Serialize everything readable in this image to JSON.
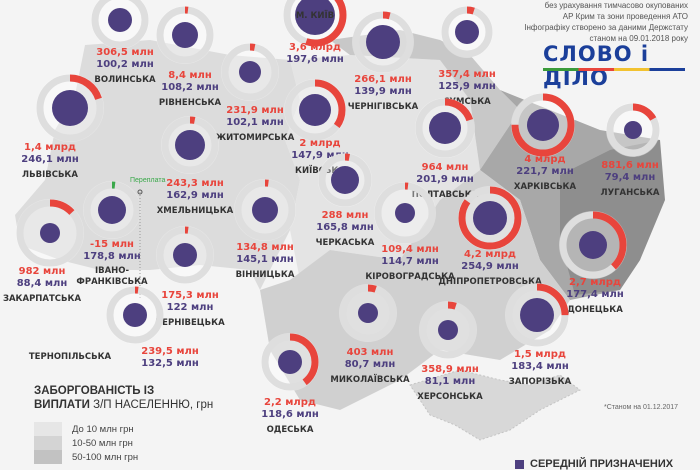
{
  "header": {
    "notes": [
      "без урахування тимчасово окупованих",
      "АР Крим та зони проведення АТО",
      "Інфографіку створено за даними Держстату",
      "станом на 09.01.2018 року"
    ],
    "logo": "СЛОВО і ДІЛО"
  },
  "colors": {
    "debt": "#e8453c",
    "wage": "#4d3f7f",
    "ring": "#dedede",
    "negative": "#3aa84a"
  },
  "regions": [
    {
      "name": "ВОЛИНСЬКА",
      "debt": "306,5 млн",
      "wage": "100,2 млн",
      "arc": 0.02
    },
    {
      "name": "РІВНЕНСЬКА",
      "debt": "8,4 млн",
      "wage": "108,2 млн",
      "arc": 0.005
    },
    {
      "name": "ЖИТОМИРСЬКА",
      "debt": "231,9 млн",
      "wage": "102,1 млн",
      "arc": 0.03
    },
    {
      "name": "М. КИЇВ",
      "debt": "3,6 млрд",
      "wage": "197,6 млн",
      "arc": 0.55
    },
    {
      "name": "КИЇВСЬКА",
      "debt": "2 млрд",
      "wage": "147,9 млн",
      "arc": 0.35
    },
    {
      "name": "ЛЬВІВСЬКА",
      "debt": "1,4 млрд",
      "wage": "246,1 млн",
      "arc": 0.2
    },
    {
      "name": "ХМЕЛЬНИЦЬКА",
      "debt": "243,3 млн",
      "wage": "162,9 млн",
      "arc": 0.03
    },
    {
      "name": "ЧЕРНІГІВСЬКА",
      "debt": "266,1 млн",
      "wage": "139,9 млн",
      "arc": 0.04
    },
    {
      "name": "СУМСЬКА",
      "debt": "357,4 млн",
      "wage": "125,9 млн",
      "arc": 0.05
    },
    {
      "name": "ПОЛТАВСЬКА",
      "debt": "964 млн",
      "wage": "201,9 млн",
      "arc": 0.2
    },
    {
      "name": "ХАРКІВСЬКА",
      "debt": "4 млрд",
      "wage": "221,7 млн",
      "arc": 0.75
    },
    {
      "name": "ЛУГАНСЬКА",
      "debt": "881,6 млн",
      "wage": "79,4 млн",
      "arc": 0.17
    },
    {
      "name": "ЧЕРКАСЬКА",
      "debt": "288 млн",
      "wage": "165,8 млн",
      "arc": 0.03
    },
    {
      "name": "ІВАНО-ФРАНКІВСЬКА",
      "debt": "-15 млн",
      "wage": "178,8 млн",
      "arc": 0.012,
      "negative": true,
      "note": "Переплата"
    },
    {
      "name": "ЗАКАРПАТСЬКА",
      "debt": "982 млн",
      "wage": "88,4 млн",
      "arc": 0.13
    },
    {
      "name": "ВІННИЦЬКА",
      "debt": "134,8 млн",
      "wage": "145,1 млн",
      "arc": 0.02
    },
    {
      "name": "КІРОВОГРАДСЬКА",
      "debt": "109,4 млн",
      "wage": "114,7 млн",
      "arc": 0.01
    },
    {
      "name": "ДНІПРОПЕТРОВСЬКА",
      "debt": "4,2 млрд",
      "wage": "254,9 млн",
      "arc": 0.85
    },
    {
      "name": "ДОНЕЦЬКА",
      "debt": "2,7 млрд",
      "wage": "177,4 млн",
      "arc": 0.38
    },
    {
      "name": "ЧЕРНІВЕЦЬКА",
      "debt": "175,3 млн",
      "wage": "122 млн",
      "arc": 0.02
    },
    {
      "name": "ТЕРНОПІЛЬСЬКА",
      "debt": "239,5 млн",
      "wage": "132,5 млн",
      "arc": 0.02
    },
    {
      "name": "ОДЕСЬКА",
      "debt": "2,2 млрд",
      "wage": "118,6 млн",
      "arc": 0.4
    },
    {
      "name": "МИКОЛАЇВСЬКА",
      "debt": "403 млн",
      "wage": "80,7 млн",
      "arc": 0.05
    },
    {
      "name": "ХЕРСОНСЬКА",
      "debt": "358,9 млн",
      "wage": "81,1 млн",
      "arc": 0.05
    },
    {
      "name": "ЗАПОРІЗЬКА",
      "debt": "1,5 млрд",
      "wage": "183,4 млн",
      "arc": 0.25
    }
  ],
  "legend": {
    "title_bold_1": "ЗАБОРГОВАНІСТЬ ІЗ",
    "title_bold_2": "ВИПЛАТИ",
    "title_rest": " З/П НАСЕЛЕННЮ, грн",
    "items": [
      {
        "label": "До 10 млн грн",
        "color": "#e6e6e6"
      },
      {
        "label": "10-50 млн грн",
        "color": "#d4d4d4"
      },
      {
        "label": "50-100 млн грн",
        "color": "#c2c2c2"
      }
    ]
  },
  "footnote": "*Станом на 01.12.2017",
  "bottom_label": "СЕРЕДНІЙ ПРИЗНАЧЕНИХ"
}
